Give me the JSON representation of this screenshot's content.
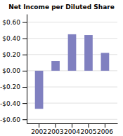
{
  "chart_data": {
    "type": "bar",
    "title": "Net Income per Diluted Share",
    "categories": [
      "2002",
      "2003",
      "2004",
      "2005",
      "2006"
    ],
    "values": [
      -0.47,
      0.12,
      0.45,
      0.44,
      0.22
    ],
    "color": "#8080c0",
    "ylim": [
      -0.65,
      0.7
    ],
    "yticks": [
      {
        "value": -0.6,
        "label": "-$0.60"
      },
      {
        "value": -0.4,
        "label": "-$0.40"
      },
      {
        "value": -0.2,
        "label": "-$0.20"
      },
      {
        "value": 0.0,
        "label": "$0.00"
      },
      {
        "value": 0.2,
        "label": "$0.20"
      },
      {
        "value": 0.4,
        "label": "$0.40"
      },
      {
        "value": 0.6,
        "label": "$0.60"
      }
    ],
    "grid": true
  }
}
